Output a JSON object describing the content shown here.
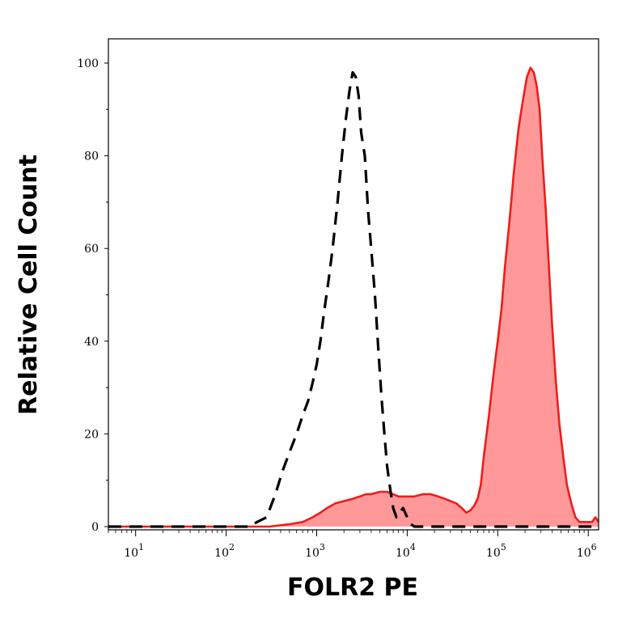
{
  "chart_data": {
    "type": "area",
    "xlabel": "FOLR2 PE",
    "ylabel": "Relative Cell Count",
    "x_scale": "log",
    "xlim": [
      5,
      1300000
    ],
    "ylim": [
      0,
      100
    ],
    "y_ticks": [
      0,
      20,
      40,
      60,
      80,
      100
    ],
    "x_ticks": [
      {
        "value": 10,
        "base": "10",
        "exp": "1"
      },
      {
        "value": 100,
        "base": "10",
        "exp": "2"
      },
      {
        "value": 1000,
        "base": "10",
        "exp": "3"
      },
      {
        "value": 10000,
        "base": "10",
        "exp": "4"
      },
      {
        "value": 100000,
        "base": "10",
        "exp": "5"
      },
      {
        "value": 1000000,
        "base": "10",
        "exp": "6"
      }
    ],
    "grid": false,
    "legend": "none",
    "series": [
      {
        "style": "dashed-black-unfilled",
        "color": "#000000",
        "x": [
          5,
          100,
          180,
          220,
          280,
          350,
          420,
          500,
          600,
          700,
          800,
          900,
          1000,
          1100,
          1200,
          1350,
          1500,
          1700,
          1900,
          2100,
          2300,
          2500,
          2700,
          2900,
          3100,
          3400,
          3700,
          4000,
          4400,
          4800,
          5200,
          5600,
          6000,
          6500,
          7000,
          7600,
          8200,
          9000,
          10000,
          11000,
          12000,
          14000,
          16000,
          20000,
          1300000
        ],
        "y": [
          0,
          0,
          0,
          1,
          2,
          7,
          12,
          16,
          20,
          24,
          27,
          31,
          35,
          40,
          46,
          53,
          60,
          70,
          80,
          88,
          94,
          98,
          97,
          93,
          85,
          80,
          68,
          60,
          50,
          38,
          28,
          20,
          13,
          8,
          4,
          2,
          3,
          4,
          2,
          0.5,
          0,
          0,
          0,
          0,
          0
        ]
      },
      {
        "style": "red-line-filled",
        "color": "#ee1c1c",
        "fill": "#ff9999",
        "x": [
          5,
          100,
          300,
          500,
          700,
          900,
          1100,
          1300,
          1600,
          2000,
          2500,
          3000,
          3500,
          4000,
          5000,
          6000,
          7000,
          8000,
          9000,
          10000,
          12000,
          15000,
          18000,
          22000,
          26000,
          30000,
          35000,
          40000,
          45000,
          50000,
          55000,
          60000,
          65000,
          70000,
          80000,
          90000,
          100000,
          110000,
          120000,
          135000,
          150000,
          170000,
          190000,
          210000,
          230000,
          250000,
          270000,
          290000,
          310000,
          340000,
          370000,
          400000,
          440000,
          480000,
          530000,
          580000,
          650000,
          720000,
          800000,
          900000,
          1000000,
          1100000,
          1200000,
          1300000
        ],
        "y": [
          0,
          0,
          0,
          0.5,
          1,
          2,
          3,
          4,
          5,
          5.5,
          6,
          6.5,
          7,
          7,
          7.5,
          7.5,
          7,
          6.5,
          6.5,
          6.5,
          6.5,
          7,
          7,
          6.5,
          6,
          5.5,
          5,
          4,
          3,
          3.5,
          4.5,
          6,
          9,
          15,
          24,
          33,
          40,
          47,
          56,
          66,
          76,
          86,
          92,
          97,
          99,
          98,
          95,
          90,
          80,
          68,
          55,
          43,
          31,
          22,
          15,
          9,
          5,
          2,
          1,
          1,
          1,
          1,
          2,
          1
        ]
      }
    ]
  }
}
